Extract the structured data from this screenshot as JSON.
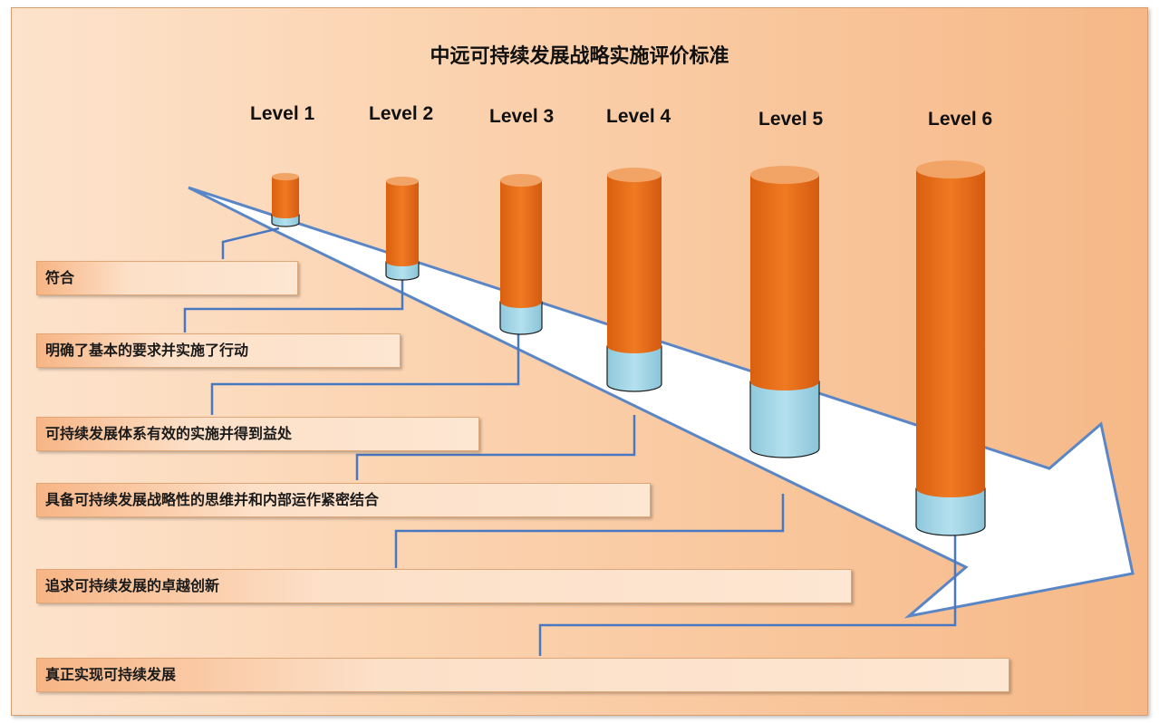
{
  "title": "中远可持续发展战略实施评价标准",
  "levels": [
    {
      "label": "Level 1",
      "stage": "符合"
    },
    {
      "label": "Level 2",
      "stage": "明确了基本的要求并实施了行动"
    },
    {
      "label": "Level 3",
      "stage": "可持续发展体系有效的实施并得到益处"
    },
    {
      "label": "Level 4",
      "stage": "具备可持续发展战略性的思维并和内部运作紧密结合"
    },
    {
      "label": "Level 5",
      "stage": "追求可持续发展的卓越创新"
    },
    {
      "label": "Level 6",
      "stage": "真正实现可持续发展"
    }
  ],
  "colors": {
    "cylinder_body": "#e8731f",
    "cylinder_base": "#a9dbe9",
    "arrow_fill": "#ffffff",
    "arrow_stroke": "#5b86c6",
    "connector": "#4a78c0"
  }
}
